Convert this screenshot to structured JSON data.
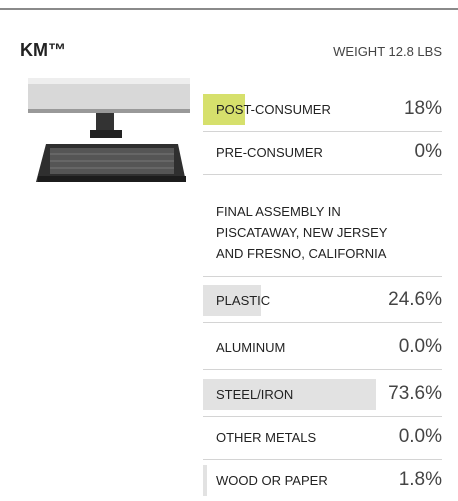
{
  "header": {
    "title": "KM™",
    "weight": "WEIGHT 12.8 LBS"
  },
  "recycled": {
    "bar_color": "#d6e06c",
    "rows": [
      {
        "label": "POST-CONSUMER",
        "value": 18,
        "value_label": "18%"
      },
      {
        "label": "PRE-CONSUMER",
        "value": 0,
        "value_label": "0%"
      }
    ]
  },
  "assembly": [
    "FINAL ASSEMBLY IN",
    "PISCATAWAY, NEW JERSEY",
    "AND FRESNO, CALIFORNIA"
  ],
  "materials": {
    "bar_color": "#e2e2e2",
    "rows": [
      {
        "label": "PLASTIC",
        "value": 24.6,
        "value_label": "24.6%"
      },
      {
        "label": "ALUMINUM",
        "value": 0.0,
        "value_label": "0.0%"
      },
      {
        "label": "STEEL/IRON",
        "value": 73.6,
        "value_label": "73.6%"
      },
      {
        "label": "OTHER METALS",
        "value": 0.0,
        "value_label": "0.0%"
      },
      {
        "label": "WOOD OR PAPER",
        "value": 1.8,
        "value_label": "1.8%"
      }
    ]
  }
}
